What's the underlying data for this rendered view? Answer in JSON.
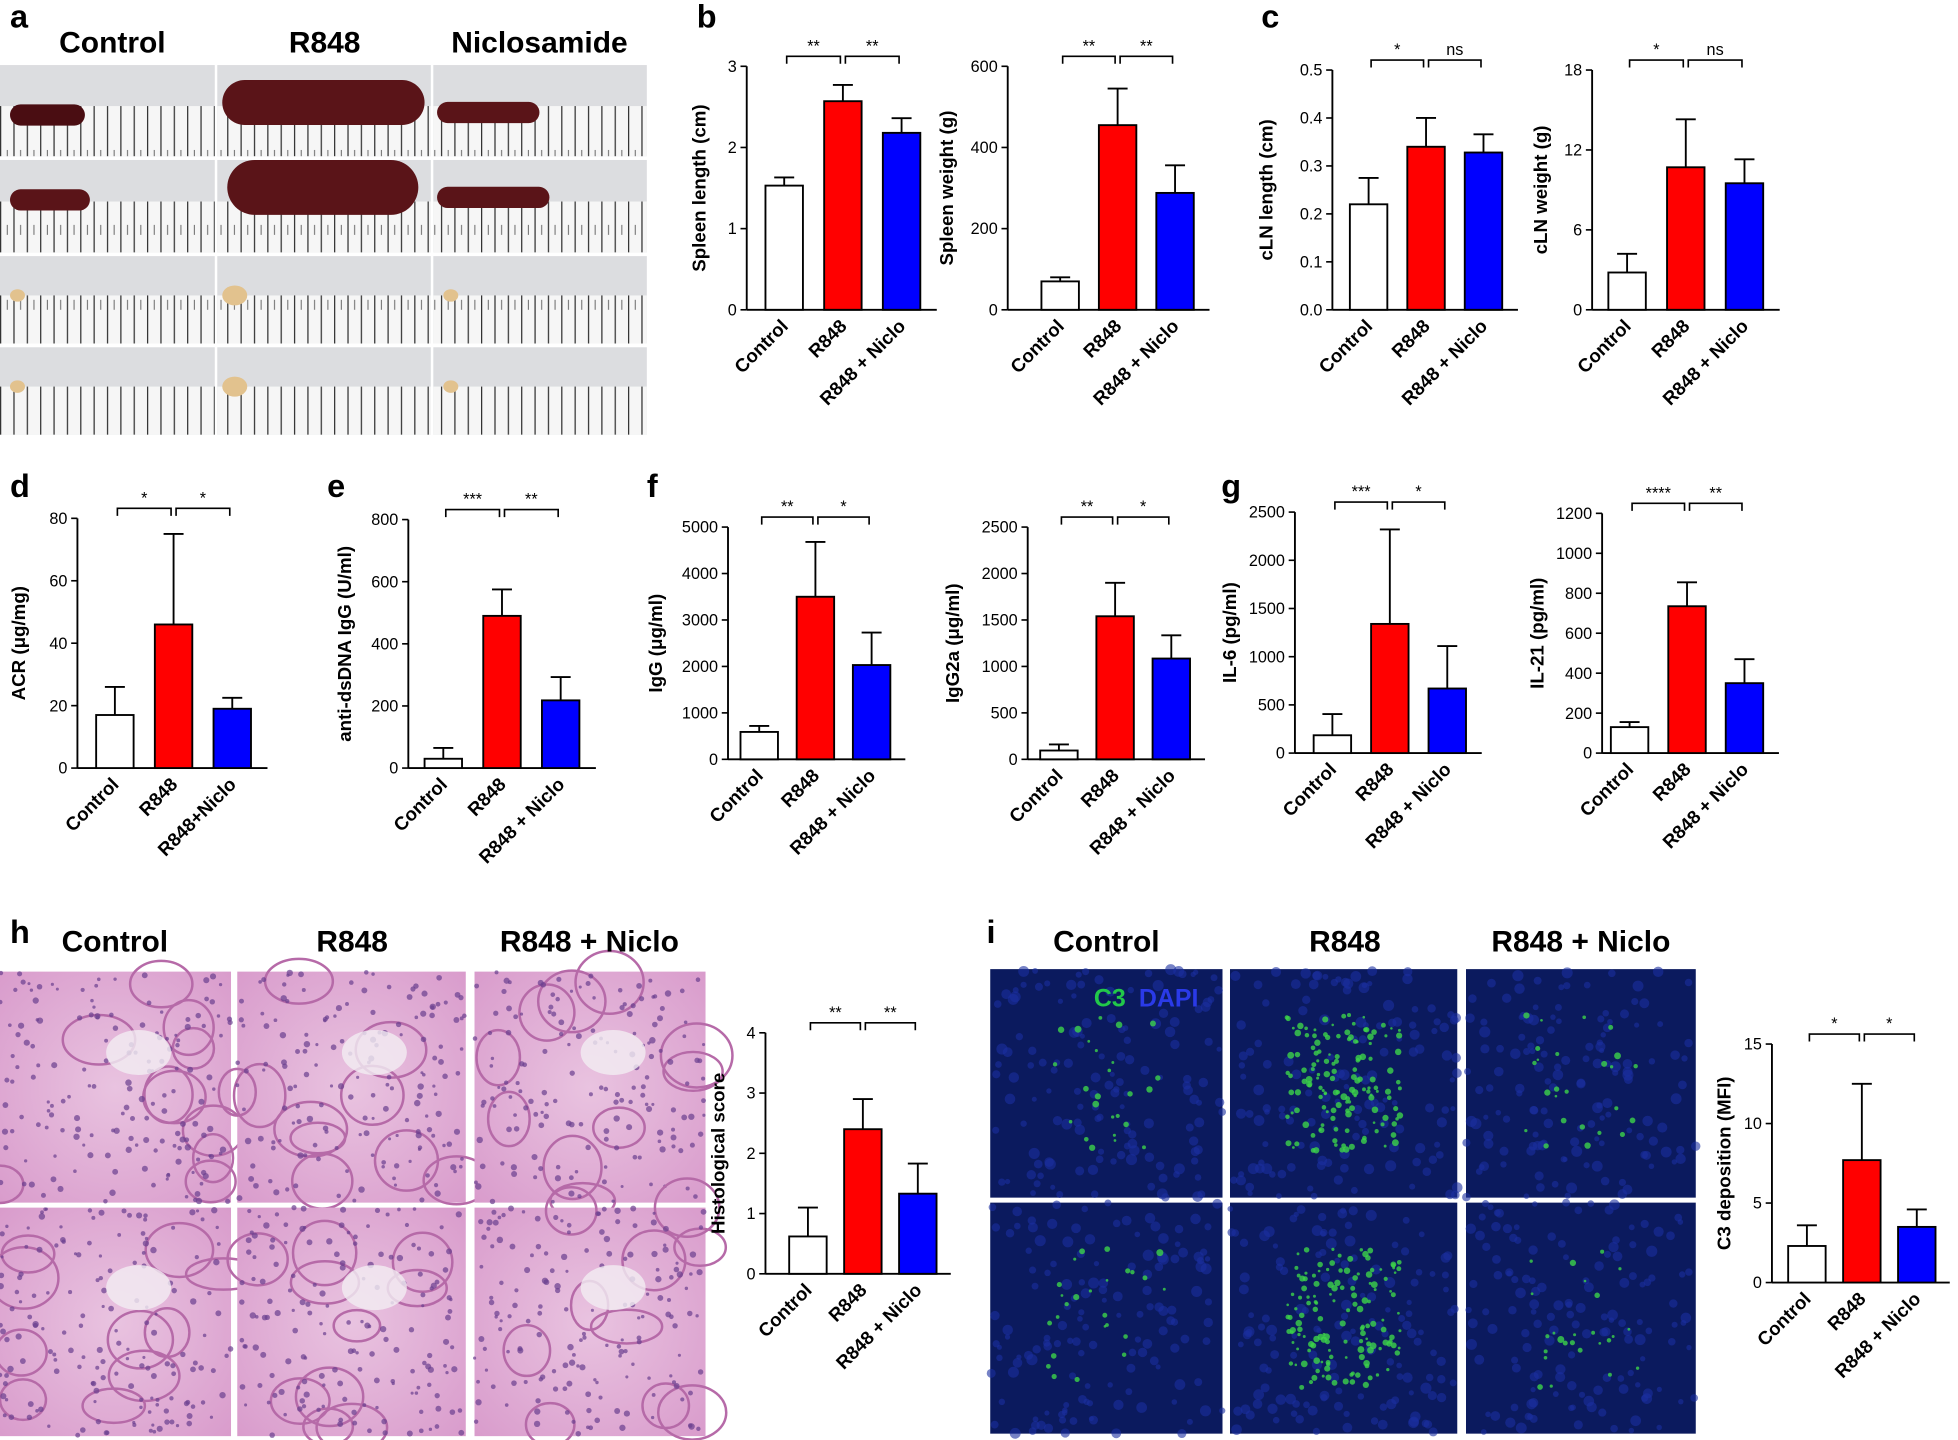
{
  "panel_labels": [
    "a",
    "b",
    "c",
    "d",
    "e",
    "f",
    "g",
    "h",
    "i"
  ],
  "photo_headers": {
    "a": [
      "Control",
      "R848",
      "Niclosamide"
    ],
    "h": [
      "Control",
      "R848",
      "R848 + Niclo"
    ],
    "i": [
      "Control",
      "R848",
      "R848 + Niclo"
    ]
  },
  "stain_labels": [
    "C3",
    "DAPI"
  ],
  "chart_data": [
    {
      "type": "bar",
      "ylabel": "Spleen length (cm)",
      "categories": [
        "Control",
        "R848",
        "R848 + Niclo"
      ],
      "colors": [
        "#ffffff",
        "#ff0000",
        "#0000ff"
      ],
      "values": [
        1.53,
        2.57,
        2.18
      ],
      "errors": [
        0.1,
        0.2,
        0.18
      ],
      "annotations": [
        "**",
        "**"
      ],
      "ylim": [
        0,
        3
      ],
      "yticks": [
        0,
        1,
        2,
        3
      ]
    },
    {
      "type": "bar",
      "ylabel": "Spleen weight (g)",
      "categories": [
        "Control",
        "R848",
        "R848 + Niclo"
      ],
      "colors": [
        "#ffffff",
        "#ff0000",
        "#0000ff"
      ],
      "values": [
        70,
        455,
        288
      ],
      "errors": [
        10,
        90,
        68
      ],
      "annotations": [
        "**",
        "**"
      ],
      "ylim": [
        0,
        600
      ],
      "yticks": [
        0,
        200,
        400,
        600
      ]
    },
    {
      "type": "bar",
      "ylabel": "cLN length (cm)",
      "categories": [
        "Control",
        "R848",
        "R848 + Niclo"
      ],
      "colors": [
        "#ffffff",
        "#ff0000",
        "#0000ff"
      ],
      "values": [
        0.22,
        0.34,
        0.328
      ],
      "errors": [
        0.055,
        0.06,
        0.038
      ],
      "annotations": [
        "*",
        "ns"
      ],
      "ylim": [
        0,
        0.5
      ],
      "yticks": [
        {
          "value": 0,
          "label": "0.0"
        },
        0.1,
        0.2,
        0.3,
        0.4,
        0.5
      ]
    },
    {
      "type": "bar",
      "ylabel": "cLN weight (g)",
      "categories": [
        "Control",
        "R848",
        "R848 + Niclo"
      ],
      "colors": [
        "#ffffff",
        "#ff0000",
        "#0000ff"
      ],
      "values": [
        2.8,
        10.7,
        9.5
      ],
      "errors": [
        1.4,
        3.6,
        1.8
      ],
      "annotations": [
        "*",
        "ns"
      ],
      "ylim": [
        0,
        18
      ],
      "yticks": [
        0,
        6,
        12,
        18
      ]
    },
    {
      "type": "bar",
      "ylabel": "ACR (μg/mg)",
      "categories": [
        "Control",
        "R848",
        "R848+Niclo"
      ],
      "colors": [
        "#ffffff",
        "#ff0000",
        "#0000ff"
      ],
      "values": [
        17,
        46,
        19
      ],
      "errors": [
        9,
        29,
        3.5
      ],
      "annotations": [
        "*",
        "*"
      ],
      "ylim": [
        0,
        80
      ],
      "yticks": [
        0,
        20,
        40,
        60,
        80
      ]
    },
    {
      "type": "bar",
      "ylabel": "anti-dsDNA IgG (U/ml)",
      "categories": [
        "Control",
        "R848",
        "R848 + Niclo"
      ],
      "colors": [
        "#ffffff",
        "#ff0000",
        "#0000ff"
      ],
      "values": [
        30,
        490,
        218
      ],
      "errors": [
        35,
        85,
        75
      ],
      "annotations": [
        "***",
        "**"
      ],
      "ylim": [
        0,
        800
      ],
      "yticks": [
        0,
        200,
        400,
        600,
        800
      ]
    },
    {
      "type": "bar",
      "ylabel": "IgG (μg/ml)",
      "categories": [
        "Control",
        "R848",
        "R848 + Niclo"
      ],
      "colors": [
        "#ffffff",
        "#ff0000",
        "#0000ff"
      ],
      "values": [
        590,
        3500,
        2030
      ],
      "errors": [
        130,
        1180,
        700
      ],
      "annotations": [
        "**",
        "*"
      ],
      "ylim": [
        0,
        5000
      ],
      "yticks": [
        0,
        1000,
        2000,
        3000,
        4000,
        5000
      ]
    },
    {
      "type": "bar",
      "ylabel": "IgG2a (μg/ml)",
      "categories": [
        "Control",
        "R848",
        "R848 + Niclo"
      ],
      "colors": [
        "#ffffff",
        "#ff0000",
        "#0000ff"
      ],
      "values": [
        95,
        1540,
        1085
      ],
      "errors": [
        65,
        360,
        250
      ],
      "annotations": [
        "**",
        "*"
      ],
      "ylim": [
        0,
        2500
      ],
      "yticks": [
        0,
        500,
        1000,
        1500,
        2000,
        2500
      ]
    },
    {
      "type": "bar",
      "ylabel": "IL-6 (pg/ml)",
      "categories": [
        "Control",
        "R848",
        "R848 + Niclo"
      ],
      "colors": [
        "#ffffff",
        "#ff0000",
        "#0000ff"
      ],
      "values": [
        185,
        1340,
        670
      ],
      "errors": [
        220,
        980,
        440
      ],
      "annotations": [
        "***",
        "*"
      ],
      "ylim": [
        0,
        2500
      ],
      "yticks": [
        0,
        500,
        1000,
        1500,
        2000,
        2500
      ]
    },
    {
      "type": "bar",
      "ylabel": "IL-21 (pg/ml)",
      "categories": [
        "Control",
        "R848",
        "R848 + Niclo"
      ],
      "colors": [
        "#ffffff",
        "#ff0000",
        "#0000ff"
      ],
      "values": [
        130,
        735,
        350
      ],
      "errors": [
        25,
        120,
        120
      ],
      "annotations": [
        "****",
        "**"
      ],
      "ylim": [
        0,
        1200
      ],
      "yticks": [
        0,
        200,
        400,
        600,
        800,
        1000,
        1200
      ]
    },
    {
      "type": "bar",
      "ylabel": "Histological score",
      "categories": [
        "Control",
        "R848",
        "R848 + Niclo"
      ],
      "colors": [
        "#ffffff",
        "#ff0000",
        "#0000ff"
      ],
      "values": [
        0.62,
        2.4,
        1.33
      ],
      "errors": [
        0.48,
        0.5,
        0.5
      ],
      "annotations": [
        "**",
        "**"
      ],
      "ylim": [
        0,
        4
      ],
      "yticks": [
        0,
        1,
        2,
        3,
        4
      ]
    },
    {
      "type": "bar",
      "ylabel": "C3 deposition (MFI)",
      "categories": [
        "Control",
        "R848",
        "R848 + Niclo"
      ],
      "colors": [
        "#ffffff",
        "#ff0000",
        "#0000ff"
      ],
      "values": [
        2.3,
        7.7,
        3.5
      ],
      "errors": [
        1.3,
        4.8,
        1.1
      ],
      "annotations": [
        "*",
        "*"
      ],
      "ylim": [
        0,
        15
      ],
      "yticks": [
        0,
        5,
        10,
        15
      ]
    }
  ]
}
